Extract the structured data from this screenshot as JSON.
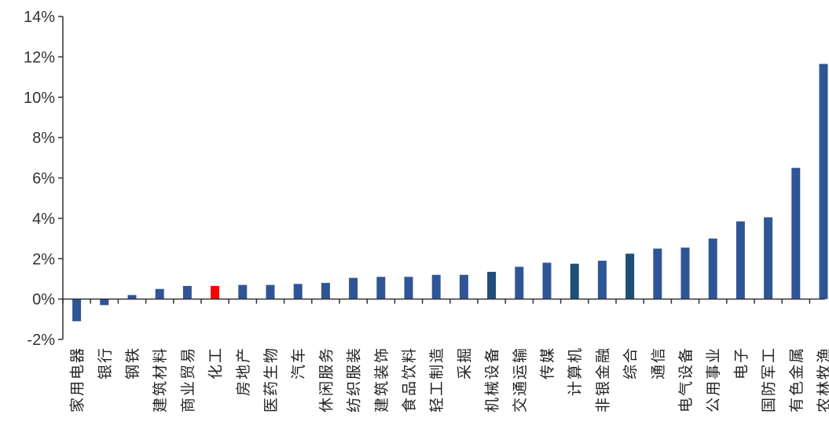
{
  "chart_data": {
    "type": "bar",
    "title": "",
    "xlabel": "",
    "ylabel": "",
    "ylim": [
      -2,
      14
    ],
    "yticks": [
      -2,
      0,
      2,
      4,
      6,
      8,
      10,
      12,
      14
    ],
    "ytick_labels": [
      "-2%",
      "0%",
      "2%",
      "4%",
      "6%",
      "8%",
      "10%",
      "12%",
      "14%"
    ],
    "grid": false,
    "legend": "none",
    "categories": [
      "家用电器",
      "银行",
      "钢铁",
      "建筑材料",
      "商业贸易",
      "化工",
      "房地产",
      "医药生物",
      "汽车",
      "休闲服务",
      "纺织服装",
      "建筑装饰",
      "食品饮料",
      "轻工制造",
      "采掘",
      "机械设备",
      "交通运输",
      "传媒",
      "计算机",
      "非银金融",
      "综合",
      "通信",
      "电气设备",
      "公用事业",
      "电子",
      "国防军工",
      "有色金属",
      "农林牧渔"
    ],
    "values": [
      -1.1,
      -0.3,
      0.2,
      0.5,
      0.65,
      0.65,
      0.7,
      0.7,
      0.75,
      0.8,
      1.05,
      1.1,
      1.1,
      1.2,
      1.2,
      1.35,
      1.6,
      1.8,
      1.75,
      1.9,
      2.25,
      2.5,
      2.55,
      3.0,
      3.85,
      4.05,
      6.5,
      11.65
    ],
    "colors": [
      "#2F5597",
      "#2F5597",
      "#2F5597",
      "#2F5597",
      "#2F5597",
      "#FF0000",
      "#2F5597",
      "#2F5597",
      "#2F5597",
      "#2F5597",
      "#2F5597",
      "#2F5597",
      "#2F5597",
      "#2F5597",
      "#2F5597",
      "#1F4E79",
      "#2F5597",
      "#2F5597",
      "#1F4E79",
      "#2F5597",
      "#1F4E79",
      "#2F5597",
      "#2F5597",
      "#2F5597",
      "#2F5597",
      "#2F5597",
      "#2F5597",
      "#2F5597"
    ]
  }
}
